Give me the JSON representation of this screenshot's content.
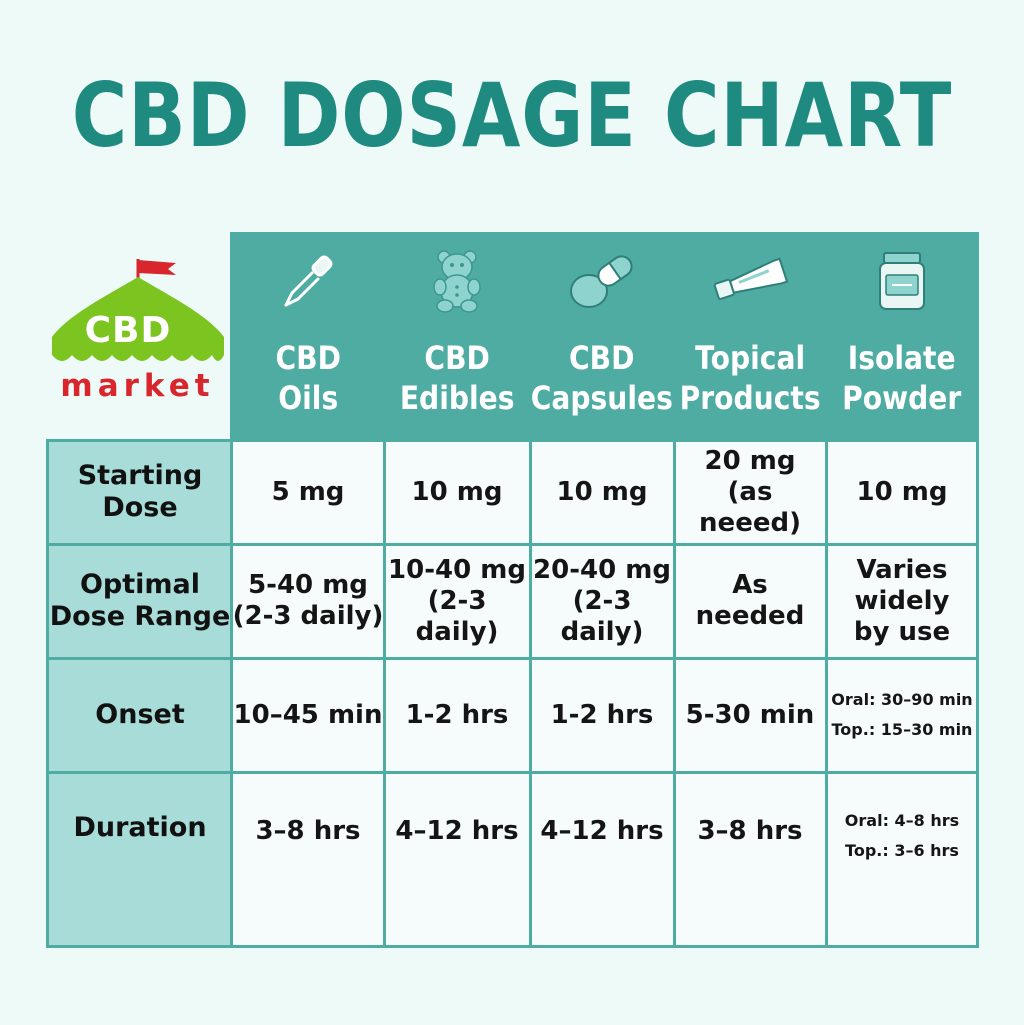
{
  "title": "CBD DOSAGE CHART",
  "logo": {
    "top_text": "CBD",
    "bottom_text": "market"
  },
  "columns": [
    {
      "icon": "dropper-icon",
      "label_line1": "CBD",
      "label_line2": "Oils"
    },
    {
      "icon": "gummy-bear-icon",
      "label_line1": "CBD",
      "label_line2": "Edibles"
    },
    {
      "icon": "capsule-icon",
      "label_line1": "CBD",
      "label_line2": "Capsules"
    },
    {
      "icon": "tube-icon",
      "label_line1": "Topical",
      "label_line2": "Products"
    },
    {
      "icon": "jar-icon",
      "label_line1": "Isolate",
      "label_line2": "Powder"
    }
  ],
  "rows": [
    {
      "label_line1": "Starting",
      "label_line2": "Dose",
      "cells": [
        {
          "line1": "5 mg"
        },
        {
          "line1": "10 mg"
        },
        {
          "line1": "10 mg"
        },
        {
          "line1": "20 mg",
          "line2": "(as neeed)"
        },
        {
          "line1": "10 mg"
        }
      ]
    },
    {
      "label_line1": "Optimal",
      "label_line2": "Dose Range",
      "cells": [
        {
          "line1": "5-40 mg",
          "line2": "(2-3 daily)"
        },
        {
          "line1": "10-40 mg",
          "line2": "(2-3 daily)"
        },
        {
          "line1": "20-40 mg",
          "line2": "(2-3 daily)"
        },
        {
          "line1": "As needed"
        },
        {
          "line1": "Varies",
          "line2": "widely",
          "line3": "by use"
        }
      ]
    },
    {
      "label_line1": "Onset",
      "label_line2": "",
      "cells": [
        {
          "line1": "10–45 min"
        },
        {
          "line1": "1-2 hrs"
        },
        {
          "line1": "1-2 hrs"
        },
        {
          "line1": "5-30 min"
        },
        {
          "line1": "Oral: 30–90 min",
          "line2": "Top.: 15–30 min"
        }
      ]
    },
    {
      "label_line1": "Duration",
      "label_line2": "",
      "cells": [
        {
          "line1": "3–8 hrs"
        },
        {
          "line1": "4–12 hrs"
        },
        {
          "line1": "4–12 hrs"
        },
        {
          "line1": "3–8 hrs"
        },
        {
          "line1": "Oral: 4–8 hrs",
          "line2": "Top.: 3–6 hrs"
        }
      ]
    }
  ],
  "colors": {
    "title": "#1f8a80",
    "header_bg": "#4eaca3",
    "row_label_bg": "#a8dcd8",
    "logo_green": "#7cc41f",
    "logo_red": "#d8262c"
  }
}
